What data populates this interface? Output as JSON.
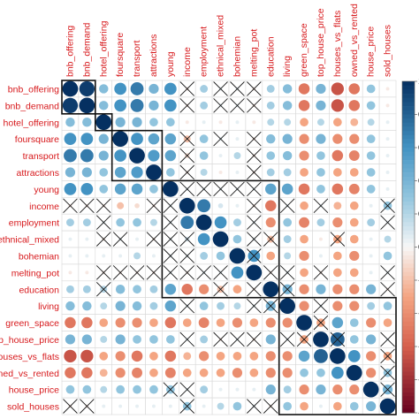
{
  "chart_data": {
    "type": "heatmap",
    "variables": [
      "bnb_offering",
      "bnb_demand",
      "hotel_offering",
      "foursquare",
      "transport",
      "attractions",
      "young",
      "income",
      "employment",
      "ethnical_mixed",
      "bohemian",
      "melting_pot",
      "education",
      "living",
      "green_space",
      "top_house_price",
      "houses_vs_flats",
      "owned_vs_rented",
      "house_price",
      "sold_houses"
    ],
    "row_labels": [
      "bnb_offering",
      "bnb_demand",
      "hotel_offering",
      "foursquare",
      "transport",
      "attractions",
      "young",
      "income",
      "employment",
      "ethnical_mixed",
      "bohemian",
      "melting_pot",
      "education",
      "living",
      "green_space",
      "top_house_price",
      "houses_vs_flats",
      "owned_vs_rented",
      "house_price",
      "sold_houses"
    ],
    "column_labels": [
      "bnb_offering",
      "bnb_demand",
      "hotel_offering",
      "foursquare",
      "transport",
      "attractions",
      "young",
      "income",
      "employment",
      "ethnical_mixed",
      "bohemian",
      "melting_pot",
      "education",
      "living",
      "green_space",
      "top_house_price",
      "houses_vs_flats",
      "owned_vs_rented",
      "house_price",
      "sold_houses"
    ],
    "matrix": [
      [
        1.0,
        0.95,
        0.35,
        0.6,
        0.7,
        0.4,
        0.6,
        -0.05,
        0.25,
        0.05,
        0.05,
        -0.05,
        0.25,
        0.35,
        -0.5,
        0.4,
        -0.65,
        -0.5,
        0.3,
        -0.05
      ],
      [
        0.95,
        1.0,
        0.35,
        0.6,
        0.7,
        0.4,
        0.6,
        -0.05,
        0.25,
        0.05,
        0.05,
        -0.05,
        0.25,
        0.35,
        -0.5,
        0.4,
        -0.65,
        -0.5,
        0.3,
        -0.05
      ],
      [
        0.35,
        0.35,
        1.0,
        0.4,
        0.4,
        0.3,
        0.3,
        -0.05,
        0.05,
        -0.05,
        0.05,
        -0.05,
        0.2,
        0.2,
        -0.3,
        0.2,
        -0.3,
        -0.25,
        0.2,
        0.05
      ],
      [
        0.6,
        0.6,
        0.4,
        1.0,
        0.6,
        0.5,
        0.5,
        -0.2,
        0.3,
        0.05,
        0.05,
        -0.05,
        0.35,
        0.4,
        -0.4,
        0.4,
        -0.4,
        -0.4,
        0.3,
        0.05
      ],
      [
        0.7,
        0.7,
        0.4,
        0.6,
        1.0,
        0.55,
        0.5,
        -0.1,
        0.3,
        0.05,
        0.2,
        -0.05,
        0.3,
        0.35,
        -0.4,
        0.3,
        -0.5,
        -0.45,
        0.3,
        0.05
      ],
      [
        0.4,
        0.4,
        0.3,
        0.5,
        0.55,
        1.0,
        0.3,
        -0.05,
        0.2,
        -0.05,
        0.05,
        -0.05,
        0.25,
        0.25,
        -0.3,
        0.3,
        -0.3,
        -0.3,
        0.3,
        0.05
      ],
      [
        0.6,
        0.6,
        0.3,
        0.5,
        0.5,
        0.3,
        1.0,
        0.05,
        0.05,
        0.05,
        0.05,
        0.05,
        0.5,
        0.5,
        -0.5,
        0.3,
        -0.5,
        -0.45,
        0.3,
        0.05
      ],
      [
        -0.05,
        -0.05,
        -0.05,
        -0.2,
        -0.1,
        -0.05,
        0.05,
        1.0,
        0.7,
        0.1,
        0.05,
        -0.05,
        -0.5,
        0.05,
        -0.3,
        0.05,
        -0.25,
        -0.3,
        0.05,
        0.3
      ],
      [
        0.25,
        0.25,
        0.05,
        0.3,
        0.3,
        0.2,
        0.05,
        0.7,
        1.0,
        0.6,
        0.25,
        0.05,
        -0.4,
        0.3,
        -0.45,
        0.25,
        -0.4,
        -0.3,
        0.25,
        0.05
      ],
      [
        0.05,
        0.05,
        -0.05,
        0.05,
        0.05,
        -0.05,
        0.05,
        0.1,
        0.6,
        1.0,
        0.3,
        0.05,
        -0.2,
        0.25,
        -0.3,
        -0.05,
        -0.3,
        -0.3,
        0.05,
        0.2
      ],
      [
        0.05,
        0.05,
        0.05,
        0.05,
        0.2,
        0.05,
        0.05,
        0.05,
        0.25,
        0.3,
        1.0,
        0.6,
        -0.3,
        0.2,
        -0.4,
        0.05,
        -0.3,
        -0.4,
        0.05,
        0.3
      ],
      [
        -0.05,
        -0.05,
        -0.05,
        -0.05,
        -0.05,
        -0.05,
        0.05,
        -0.05,
        0.05,
        0.05,
        0.6,
        1.0,
        -0.05,
        0.05,
        -0.3,
        -0.05,
        -0.3,
        -0.3,
        0.05,
        0.05
      ],
      [
        0.25,
        0.25,
        0.2,
        0.35,
        0.3,
        0.25,
        0.5,
        -0.5,
        -0.4,
        -0.2,
        -0.3,
        -0.05,
        1.0,
        0.4,
        -0.4,
        0.4,
        -0.4,
        -0.4,
        0.4,
        -0.05
      ],
      [
        0.35,
        0.35,
        0.2,
        0.4,
        0.35,
        0.25,
        0.5,
        0.05,
        0.3,
        0.25,
        0.2,
        0.05,
        0.4,
        1.0,
        -0.4,
        0.05,
        -0.4,
        -0.4,
        0.25,
        0.3
      ],
      [
        -0.5,
        -0.5,
        -0.3,
        -0.4,
        -0.4,
        -0.3,
        -0.5,
        -0.3,
        -0.45,
        -0.3,
        -0.4,
        -0.3,
        -0.4,
        -0.4,
        1.0,
        -0.3,
        0.5,
        0.3,
        -0.4,
        -0.3
      ],
      [
        0.4,
        0.4,
        0.2,
        0.4,
        0.3,
        0.3,
        0.3,
        0.05,
        0.25,
        -0.05,
        0.05,
        -0.05,
        0.4,
        0.05,
        -0.3,
        1.0,
        0.8,
        0.3,
        0.4,
        0.05
      ],
      [
        -0.65,
        -0.65,
        -0.3,
        -0.4,
        -0.5,
        -0.3,
        -0.5,
        -0.25,
        -0.4,
        -0.3,
        -0.3,
        -0.3,
        -0.4,
        -0.4,
        0.5,
        0.8,
        1.0,
        0.6,
        -0.4,
        -0.3
      ],
      [
        -0.5,
        -0.5,
        -0.25,
        -0.4,
        -0.45,
        -0.3,
        -0.45,
        -0.3,
        -0.3,
        -0.3,
        -0.4,
        -0.3,
        -0.4,
        -0.4,
        0.3,
        0.3,
        0.6,
        1.0,
        -0.4,
        0.3
      ],
      [
        0.3,
        0.3,
        0.2,
        0.3,
        0.3,
        0.3,
        0.3,
        0.05,
        0.25,
        0.05,
        0.05,
        0.05,
        0.4,
        0.25,
        -0.4,
        0.4,
        -0.4,
        -0.4,
        1.0,
        0.4
      ],
      [
        -0.05,
        -0.05,
        0.05,
        0.05,
        0.05,
        0.05,
        0.05,
        0.3,
        0.05,
        0.2,
        0.3,
        0.05,
        -0.05,
        0.3,
        -0.3,
        0.05,
        -0.3,
        0.3,
        0.4,
        1.0
      ]
    ],
    "crossed_cells": [
      [
        0,
        7
      ],
      [
        0,
        9
      ],
      [
        0,
        10
      ],
      [
        0,
        11
      ],
      [
        1,
        7
      ],
      [
        1,
        9
      ],
      [
        1,
        10
      ],
      [
        1,
        11
      ],
      [
        3,
        7
      ],
      [
        3,
        9
      ],
      [
        3,
        11
      ],
      [
        4,
        7
      ],
      [
        4,
        11
      ],
      [
        5,
        7
      ],
      [
        5,
        11
      ],
      [
        6,
        7
      ],
      [
        6,
        8
      ],
      [
        6,
        9
      ],
      [
        6,
        10
      ],
      [
        6,
        11
      ],
      [
        7,
        0
      ],
      [
        7,
        1
      ],
      [
        7,
        2
      ],
      [
        7,
        5
      ],
      [
        7,
        6
      ],
      [
        7,
        11
      ],
      [
        7,
        13
      ],
      [
        7,
        15
      ],
      [
        7,
        19
      ],
      [
        8,
        2
      ],
      [
        8,
        6
      ],
      [
        8,
        11
      ],
      [
        8,
        19
      ],
      [
        9,
        2
      ],
      [
        9,
        3
      ],
      [
        9,
        5
      ],
      [
        9,
        6
      ],
      [
        9,
        7
      ],
      [
        9,
        11
      ],
      [
        9,
        12
      ],
      [
        9,
        16
      ],
      [
        10,
        6
      ],
      [
        10,
        7
      ],
      [
        10,
        11
      ],
      [
        11,
        2
      ],
      [
        11,
        3
      ],
      [
        11,
        4
      ],
      [
        11,
        5
      ],
      [
        11,
        6
      ],
      [
        11,
        7
      ],
      [
        11,
        8
      ],
      [
        11,
        9
      ],
      [
        11,
        12
      ],
      [
        11,
        13
      ],
      [
        11,
        15
      ],
      [
        11,
        19
      ],
      [
        12,
        2
      ],
      [
        12,
        9
      ],
      [
        12,
        11
      ],
      [
        12,
        13
      ],
      [
        12,
        19
      ],
      [
        13,
        7
      ],
      [
        13,
        11
      ],
      [
        13,
        12
      ],
      [
        13,
        15
      ],
      [
        14,
        15
      ],
      [
        15,
        7
      ],
      [
        15,
        9
      ],
      [
        15,
        10
      ],
      [
        15,
        11
      ],
      [
        15,
        13
      ],
      [
        15,
        14
      ],
      [
        15,
        16
      ],
      [
        15,
        19
      ],
      [
        16,
        19
      ],
      [
        17,
        19
      ],
      [
        18,
        6
      ],
      [
        18,
        7
      ],
      [
        18,
        19
      ],
      [
        19,
        0
      ],
      [
        19,
        1
      ],
      [
        19,
        7
      ],
      [
        19,
        11
      ],
      [
        19,
        12
      ]
    ],
    "clusters": [
      {
        "first": "bnb_offering",
        "last": "bnb_demand"
      },
      {
        "first": "hotel_offering",
        "last": "hotel_offering"
      },
      {
        "first": "foursquare",
        "last": "attractions"
      },
      {
        "first": "young",
        "last": "education"
      },
      {
        "first": "living",
        "last": "sold_houses"
      }
    ],
    "color_scale": {
      "domain": [
        -1,
        1
      ],
      "ticks": [
        "-1",
        "-0.8",
        "-0.6",
        "-0.4",
        "-0.2",
        "0",
        "0.2",
        "0.4",
        "0.6",
        "0.8",
        "1"
      ],
      "negative_color": "#67001F",
      "neutral_color": "#F7F7F7",
      "positive_color": "#053061"
    },
    "label_color": "#D7191C",
    "glyph": "circle area proportional to |r|; cross marks non-significant correlation",
    "legend_placement": "right"
  }
}
